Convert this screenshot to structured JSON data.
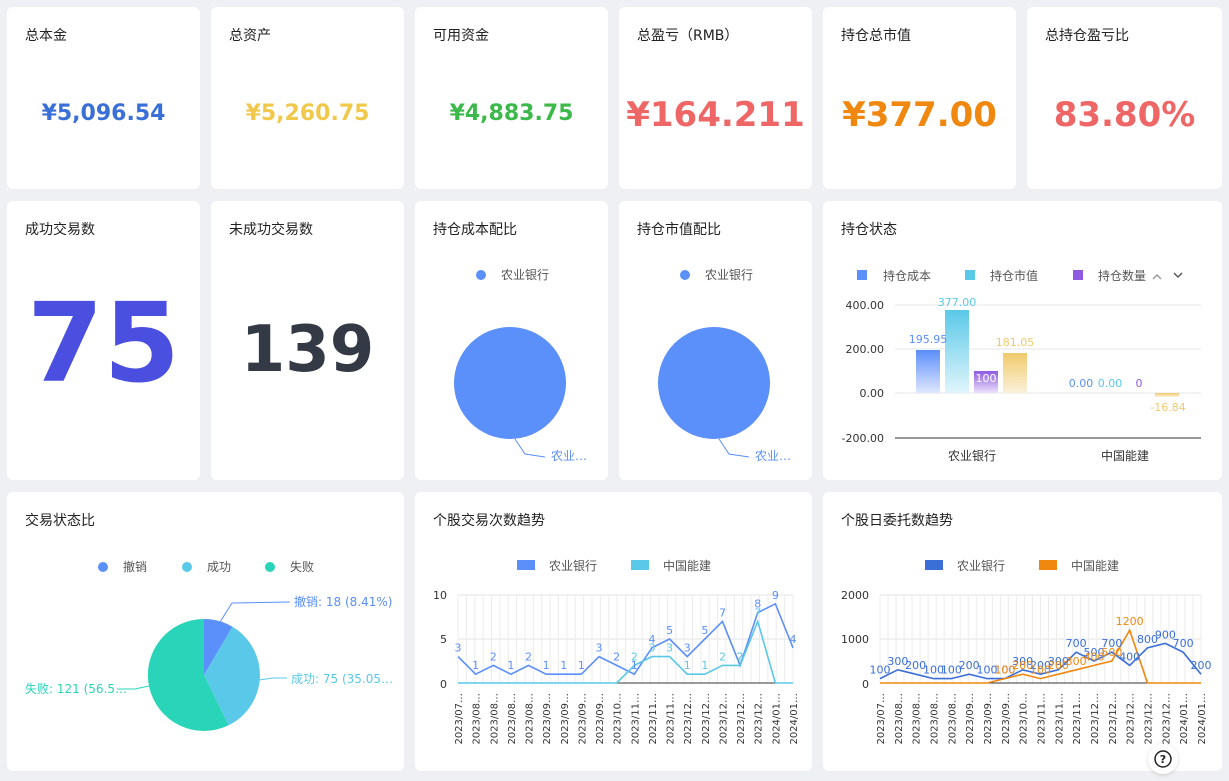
{
  "stats": {
    "principal": {
      "label": "总本金",
      "value": "¥5,096.54",
      "color": "#3a6fd8"
    },
    "assets": {
      "label": "总资产",
      "value": "¥5,260.75",
      "color": "#f2c84b"
    },
    "available": {
      "label": "可用资金",
      "value": "¥4,883.75",
      "color": "#3cb94a"
    },
    "pnl": {
      "label": "总盈亏（RMB）",
      "value": "¥164.211",
      "color": "#ee6666"
    },
    "market_value": {
      "label": "持仓总市值",
      "value": "¥377.00",
      "color": "#f0870f"
    },
    "pnl_ratio": {
      "label": "总持仓盈亏比",
      "value": "83.80%",
      "color": "#ee6666"
    },
    "success_count": {
      "label": "成功交易数",
      "value": "75",
      "color": "#4a4fe0"
    },
    "fail_count": {
      "label": "未成功交易数",
      "value": "139",
      "color": "#333a45"
    }
  },
  "cost_ratio": {
    "title": "持仓成本配比",
    "legend": "农业银行",
    "slice_label": "农业…"
  },
  "mv_ratio": {
    "title": "持仓市值配比",
    "legend": "农业银行",
    "slice_label": "农业…"
  },
  "hold_status": {
    "title": "持仓状态",
    "legend": [
      "持仓成本",
      "持仓市值",
      "持仓数量"
    ],
    "yticks": [
      "400.00",
      "200.00",
      "0.00",
      "-200.00"
    ],
    "cats": [
      "农业银行",
      "中国能建"
    ]
  },
  "trade_status": {
    "title": "交易状态比",
    "legend": [
      "撤销",
      "成功",
      "失败"
    ],
    "labels": [
      "撤销: 18 (8.41%)",
      "成功: 75 (35.05…",
      "失败: 121 (56.5…"
    ]
  },
  "trade_trend": {
    "title": "个股交易次数趋势",
    "legend": [
      "农业银行",
      "中国能建"
    ],
    "yticks": [
      "10",
      "5",
      "0"
    ]
  },
  "order_trend": {
    "title": "个股日委托数趋势",
    "legend": [
      "农业银行",
      "中国能建"
    ],
    "yticks": [
      "2000",
      "1000",
      "0"
    ]
  },
  "colors": {
    "blue": "#5b8ff9",
    "sky": "#5ac8e8",
    "purple": "#8e5be0",
    "gold": "#f0c96a",
    "teal": "#2ad4b8",
    "orange": "#f0870f",
    "royal": "#3a6fd8"
  },
  "chart_data": [
    {
      "type": "pie",
      "title": "持仓成本配比",
      "slices": [
        {
          "name": "农业银行",
          "value": 100
        }
      ]
    },
    {
      "type": "pie",
      "title": "持仓市值配比",
      "slices": [
        {
          "name": "农业银行",
          "value": 100
        }
      ]
    },
    {
      "type": "bar",
      "title": "持仓状态",
      "categories": [
        "农业银行",
        "中国能建"
      ],
      "series": [
        {
          "name": "持仓成本",
          "values": [
            195.95,
            0
          ]
        },
        {
          "name": "持仓市值",
          "values": [
            377.0,
            0
          ]
        },
        {
          "name": "持仓数量",
          "values": [
            100,
            0
          ]
        },
        {
          "name": "",
          "values": [
            181.05,
            -16.84
          ]
        }
      ],
      "ylim": [
        -200,
        400
      ]
    },
    {
      "type": "pie",
      "title": "交易状态比",
      "slices": [
        {
          "name": "撤销",
          "value": 18
        },
        {
          "name": "成功",
          "value": 75
        },
        {
          "name": "失败",
          "value": 121
        }
      ]
    },
    {
      "type": "line",
      "title": "个股交易次数趋势",
      "ylim": [
        0,
        10
      ],
      "x": [
        "2023/07…",
        "2023/08…",
        "2023/08…",
        "2023/08…",
        "2023/08…",
        "2023/09…",
        "2023/09…",
        "2023/09…",
        "2023/09…",
        "2023/10…",
        "2023/11…",
        "2023/11…",
        "2023/11…",
        "2023/12…",
        "2023/12…",
        "2023/12…",
        "2023/12…",
        "2023/12…",
        "2024/01…",
        "2024/01…"
      ],
      "series": [
        {
          "name": "农业银行",
          "values": [
            3,
            1,
            2,
            1,
            2,
            1,
            1,
            1,
            3,
            2,
            1,
            4,
            5,
            3,
            5,
            7,
            2,
            8,
            9,
            4
          ]
        },
        {
          "name": "中国能建",
          "values": [
            0,
            0,
            0,
            0,
            0,
            0,
            0,
            0,
            0,
            0,
            2,
            3,
            3,
            1,
            1,
            2,
            2,
            7,
            0,
            0
          ]
        }
      ]
    },
    {
      "type": "line",
      "title": "个股日委托数趋势",
      "ylim": [
        0,
        2000
      ],
      "x": [
        "2023/07…",
        "2023/08…",
        "2023/08…",
        "2023/08…",
        "2023/08…",
        "2023/09…",
        "2023/09…",
        "2023/09…",
        "2023/10…",
        "2023/11…",
        "2023/11…",
        "2023/11…",
        "2023/12…",
        "2023/12…",
        "2023/12…",
        "2023/12…",
        "2023/12…",
        "2024/01…",
        "2024/01…"
      ],
      "series": [
        {
          "name": "农业银行",
          "values": [
            100,
            300,
            200,
            100,
            100,
            200,
            100,
            100,
            300,
            200,
            300,
            700,
            500,
            700,
            400,
            800,
            900,
            700,
            200
          ]
        },
        {
          "name": "中国能建",
          "values": [
            0,
            0,
            0,
            0,
            0,
            0,
            0,
            100,
            200,
            100,
            200,
            300,
            400,
            500,
            1200,
            0,
            0,
            0,
            0
          ]
        }
      ]
    }
  ]
}
